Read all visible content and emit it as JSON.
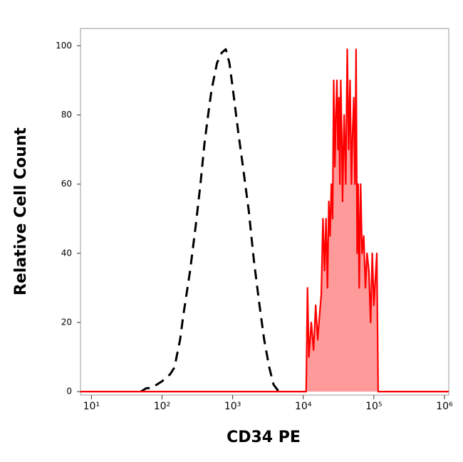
{
  "chart_data": {
    "type": "histogram-overlay",
    "xlabel": "CD34 PE",
    "ylabel": "Relative Cell Count",
    "xscale": "log",
    "xlim": [
      7,
      1150000
    ],
    "ylim": [
      -1,
      105
    ],
    "xticks": [
      {
        "value": 10,
        "label": "10¹"
      },
      {
        "value": 100,
        "label": "10²"
      },
      {
        "value": 1000,
        "label": "10³"
      },
      {
        "value": 10000,
        "label": "10⁴"
      },
      {
        "value": 100000,
        "label": "10⁵"
      },
      {
        "value": 1000000,
        "label": "10⁶"
      }
    ],
    "yticks": [
      0,
      20,
      40,
      60,
      80,
      100
    ],
    "series": [
      {
        "color": "#000000",
        "style": "dashed",
        "fill": false,
        "x": [
          50,
          60,
          70,
          100,
          130,
          150,
          180,
          200,
          250,
          300,
          350,
          400,
          450,
          500,
          600,
          700,
          800,
          900,
          1000,
          1200,
          1400,
          1700,
          2000,
          2400,
          2800,
          3300,
          3800,
          4500
        ],
        "values": [
          0,
          1,
          1,
          3,
          5,
          7,
          15,
          22,
          35,
          48,
          60,
          72,
          80,
          87,
          95,
          98,
          99,
          95,
          88,
          75,
          65,
          52,
          38,
          25,
          15,
          7,
          2,
          0
        ]
      },
      {
        "color": "#ff0000",
        "style": "solid",
        "fill": true,
        "fill_color": "#ff9a9a",
        "x": [
          7,
          10800,
          11000,
          11500,
          12000,
          13000,
          14000,
          15000,
          16000,
          17000,
          18000,
          19000,
          20000,
          21000,
          22000,
          23000,
          24000,
          25000,
          26000,
          27000,
          28000,
          29000,
          30000,
          31000,
          32000,
          33000,
          34000,
          35000,
          36000,
          37000,
          38000,
          40000,
          42000,
          44000,
          46000,
          48000,
          50000,
          52000,
          54000,
          56000,
          58000,
          60000,
          62000,
          65000,
          68000,
          72000,
          76000,
          80000,
          85000,
          90000,
          95000,
          100000,
          110000,
          115000,
          1150000
        ],
        "values": [
          0,
          0,
          0,
          30,
          10,
          20,
          12,
          25,
          15,
          22,
          28,
          50,
          35,
          50,
          30,
          55,
          45,
          60,
          50,
          90,
          65,
          80,
          90,
          70,
          85,
          60,
          90,
          75,
          55,
          70,
          80,
          60,
          99,
          70,
          90,
          60,
          75,
          85,
          60,
          99,
          40,
          60,
          30,
          60,
          40,
          45,
          30,
          40,
          35,
          20,
          40,
          25,
          40,
          0,
          0
        ]
      }
    ]
  }
}
